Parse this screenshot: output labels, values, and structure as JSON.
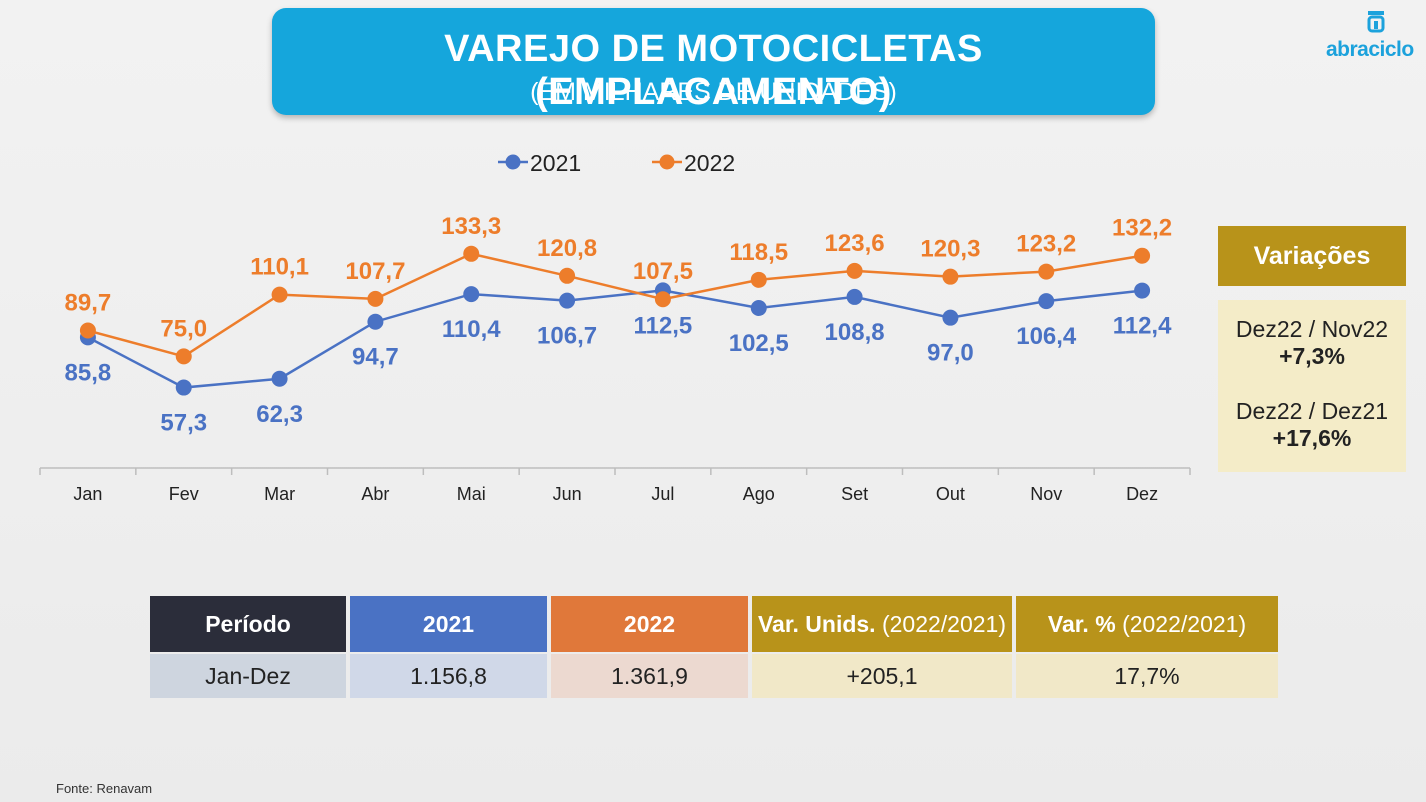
{
  "title": {
    "main": "VAREJO DE MOTOCICLETAS (EMPLACAMENTO)",
    "sub": "(EM MILHARES DE UNIDADES)"
  },
  "logo": {
    "text": "abraciclo"
  },
  "chart_data": {
    "type": "line",
    "title": "VAREJO DE MOTOCICLETAS (EMPLACAMENTO)",
    "subtitle": "(EM MILHARES DE UNIDADES)",
    "categories": [
      "Jan",
      "Fev",
      "Mar",
      "Abr",
      "Mai",
      "Jun",
      "Jul",
      "Ago",
      "Set",
      "Out",
      "Nov",
      "Dez"
    ],
    "series": [
      {
        "name": "2021",
        "color": "#4a72c4",
        "values": [
          85.8,
          57.3,
          62.3,
          94.7,
          110.4,
          106.7,
          112.5,
          102.5,
          108.8,
          97.0,
          106.4,
          112.4
        ],
        "labels": [
          "85,8",
          "57,3",
          "62,3",
          "94,7",
          "110,4",
          "106,7",
          "112,5",
          "102,5",
          "108,8",
          "97,0",
          "106,4",
          "112,4"
        ]
      },
      {
        "name": "2022",
        "color": "#ed7d2b",
        "values": [
          89.7,
          75.0,
          110.1,
          107.7,
          133.3,
          120.8,
          107.5,
          118.5,
          123.6,
          120.3,
          123.2,
          132.2
        ],
        "labels": [
          "89,7",
          "75,0",
          "110,1",
          "107,7",
          "133,3",
          "120,8",
          "107,5",
          "118,5",
          "123,6",
          "120,3",
          "123,2",
          "132,2"
        ]
      }
    ],
    "legend_position": "top-center",
    "grid": false,
    "ylim": [
      0,
      160
    ]
  },
  "variacoes": {
    "header": "Variações",
    "items": [
      {
        "label": "Dez22 / Nov22",
        "value": "+7,3%"
      },
      {
        "label": "Dez22 / Dez21",
        "value": "+17,6%"
      }
    ]
  },
  "summary_table": {
    "headers": {
      "periodo": "Período",
      "y2021": "2021",
      "y2022": "2022",
      "var_unids": "Var. Unids.",
      "var_unids_suffix": "(2022/2021)",
      "var_pct": "Var. %",
      "var_pct_suffix": "(2022/2021)"
    },
    "row": {
      "periodo": "Jan-Dez",
      "y2021": "1.156,8",
      "y2022": "1.361,9",
      "var_unids": "+205,1",
      "var_pct": "17,7%"
    }
  },
  "colors": {
    "title_bg": "#15a6dc",
    "series_2021": "#4a72c4",
    "series_2022": "#ed7d2b",
    "header_dark": "#2b2d3a",
    "header_gold": "#b8931a",
    "variacoes_bg": "#f4ecc8"
  },
  "source": "Fonte: Renavam"
}
